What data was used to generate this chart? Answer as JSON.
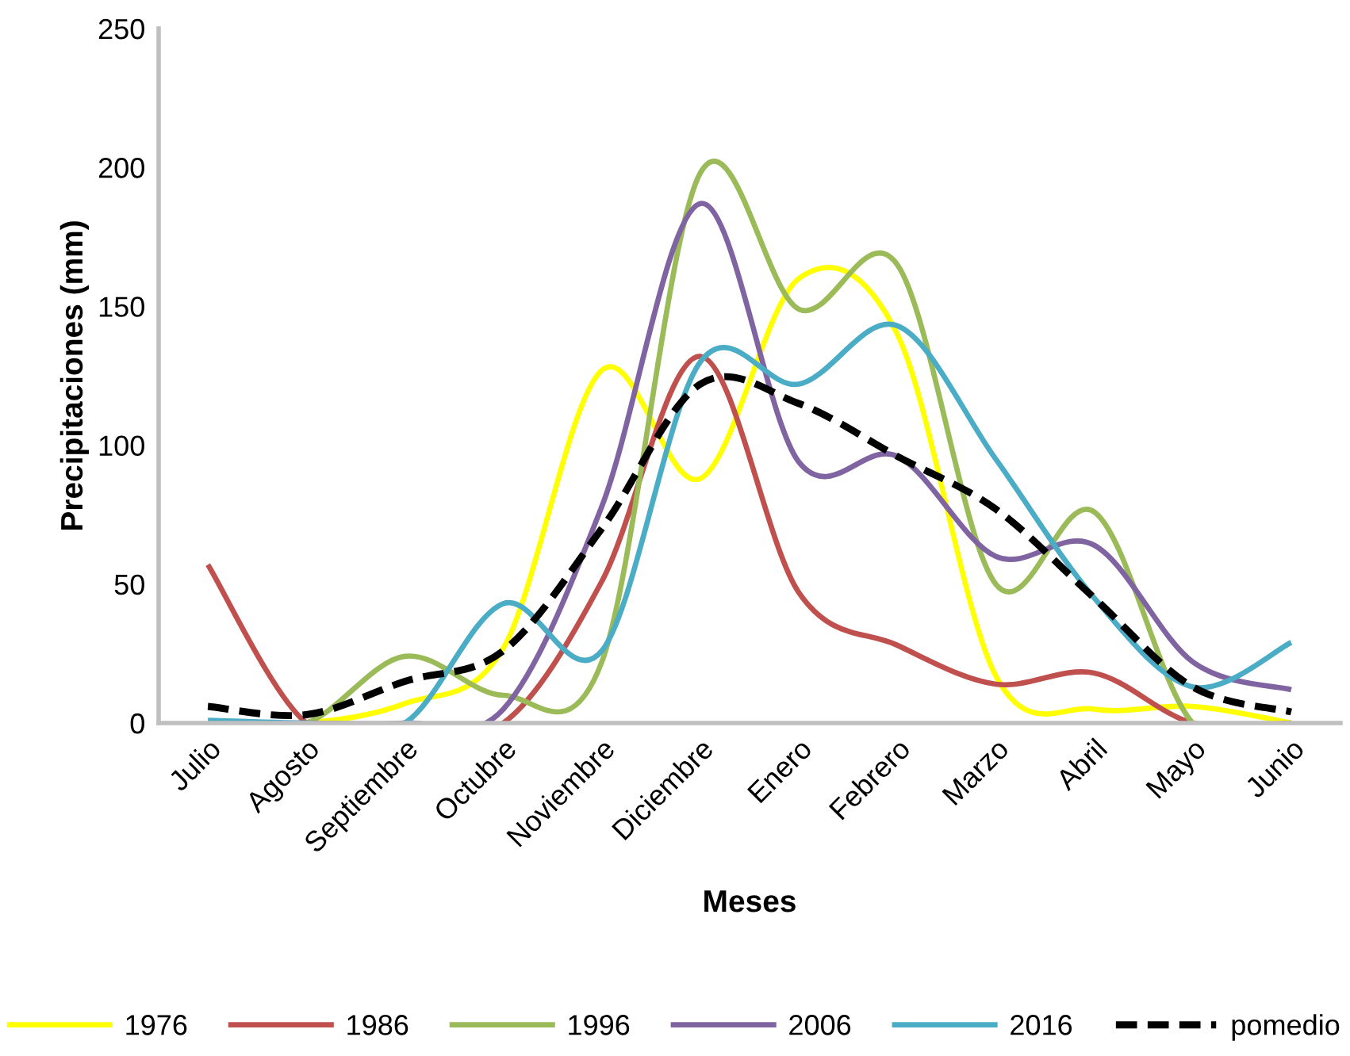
{
  "chart_data": {
    "type": "line",
    "xlabel": "Meses",
    "ylabel": "Precipitaciones (mm)",
    "categories": [
      "Julio",
      "Agosto",
      "Septiembre",
      "Octubre",
      "Noviembre",
      "Diciembre",
      "Enero",
      "Febrero",
      "Marzo",
      "Abril",
      "Mayo",
      "Junio"
    ],
    "series": [
      {
        "name": "1976",
        "color": "#ffff00",
        "values": [
          0,
          0,
          7,
          27,
          127,
          88,
          160,
          140,
          17,
          5,
          6,
          0
        ]
      },
      {
        "name": "1986",
        "color": "#c0504d",
        "values": [
          57,
          0,
          0,
          0,
          51,
          132,
          47,
          28,
          14,
          18,
          0,
          0
        ]
      },
      {
        "name": "1996",
        "color": "#9bbb59",
        "values": [
          0,
          0,
          24,
          10,
          22,
          198,
          149,
          165,
          50,
          76,
          0,
          0
        ]
      },
      {
        "name": "2006",
        "color": "#8064a2",
        "values": [
          0,
          0,
          0,
          5,
          78,
          187,
          94,
          96,
          60,
          64,
          22,
          12
        ]
      },
      {
        "name": "2016",
        "color": "#4bacc6",
        "values": [
          1,
          0,
          0,
          43,
          26,
          130,
          122,
          143,
          95,
          45,
          13,
          29
        ]
      },
      {
        "name": "pomedio",
        "color": "#000000",
        "line_style": "dashed",
        "values": [
          6,
          3,
          15,
          26,
          70,
          122,
          115,
          96,
          77,
          45,
          13,
          4
        ]
      }
    ],
    "ylim": [
      0,
      250
    ],
    "yticks": [
      0,
      50,
      100,
      150,
      200,
      250
    ],
    "grid": false,
    "legend": "bottom",
    "line_style": "solid",
    "marker": "none"
  }
}
